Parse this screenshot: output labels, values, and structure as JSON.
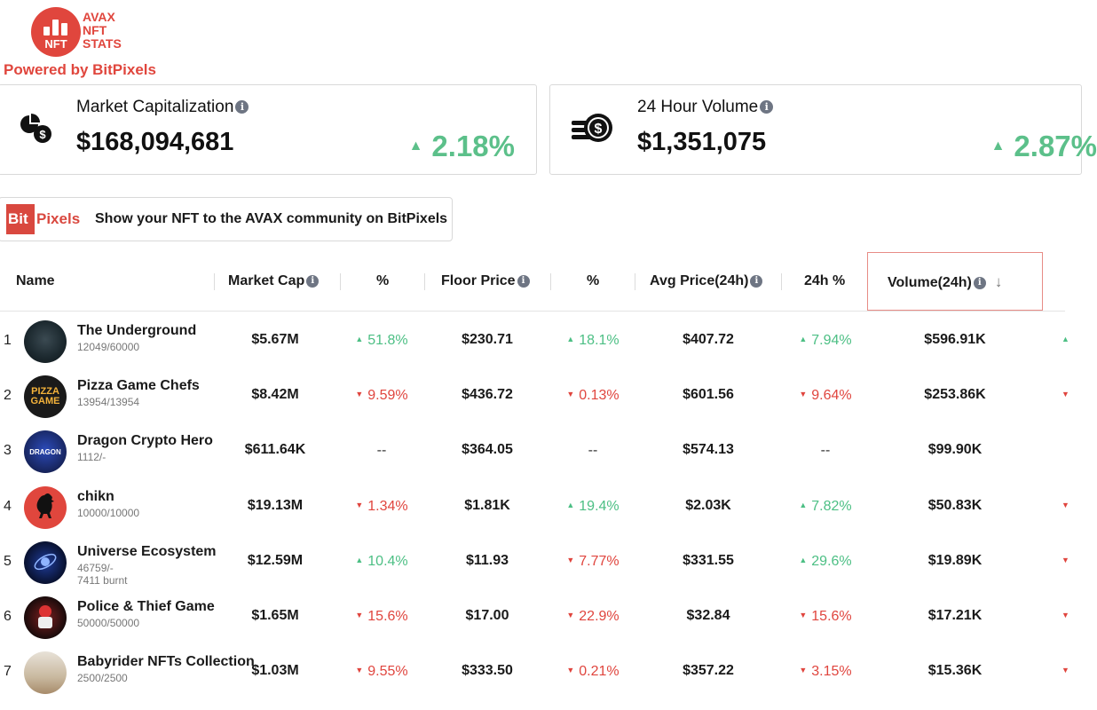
{
  "brand": {
    "logo_text": "NFT",
    "logo_words": [
      "AVAX",
      "NFT",
      "STATS"
    ],
    "powered_by": "Powered by BitPixels",
    "accent_color": "#e0463d"
  },
  "stats": [
    {
      "title": "Market Capitalization",
      "value": "$168,094,681",
      "change": "2.18%",
      "direction": "up",
      "icon": "pie-chart-dollar-icon"
    },
    {
      "title": "24 Hour Volume",
      "value": "$1,351,075",
      "change": "2.87%",
      "direction": "up",
      "icon": "stacked-coins-dollar-icon"
    }
  ],
  "promo": {
    "logo_bit": "Bit",
    "logo_pixels": "Pixels",
    "text": "Show your NFT to the AVAX community on BitPixels"
  },
  "table": {
    "headers": {
      "name": "Name",
      "market_cap": "Market Cap",
      "mc_pct": "%",
      "floor_price": "Floor Price",
      "fp_pct": "%",
      "avg_price": "Avg Price(24h)",
      "ap_pct": "24h %",
      "volume": "Volume(24h)"
    },
    "sorted_by": "Volume(24h)",
    "rows": [
      {
        "rank": "1",
        "name": "The Underground",
        "supply": "12049/60000",
        "burnt": "",
        "market_cap": "$5.67M",
        "mc_pct": "51.8%",
        "mc_dir": "up",
        "floor": "$230.71",
        "fp_pct": "18.1%",
        "fp_dir": "up",
        "avg": "$407.72",
        "ap_pct": "7.94%",
        "ap_dir": "up",
        "volume": "$596.91K",
        "edge_dir": "up"
      },
      {
        "rank": "2",
        "name": "Pizza Game Chefs",
        "supply": "13954/13954",
        "burnt": "",
        "market_cap": "$8.42M",
        "mc_pct": "9.59%",
        "mc_dir": "down",
        "floor": "$436.72",
        "fp_pct": "0.13%",
        "fp_dir": "down",
        "avg": "$601.56",
        "ap_pct": "9.64%",
        "ap_dir": "down",
        "volume": "$253.86K",
        "edge_dir": "down"
      },
      {
        "rank": "3",
        "name": "Dragon Crypto Hero",
        "supply": "1112/-",
        "burnt": "",
        "market_cap": "$611.64K",
        "mc_pct": "--",
        "mc_dir": "none",
        "floor": "$364.05",
        "fp_pct": "--",
        "fp_dir": "none",
        "avg": "$574.13",
        "ap_pct": "--",
        "ap_dir": "none",
        "volume": "$99.90K",
        "edge_dir": "none"
      },
      {
        "rank": "4",
        "name": "chikn",
        "supply": "10000/10000",
        "burnt": "",
        "market_cap": "$19.13M",
        "mc_pct": "1.34%",
        "mc_dir": "down",
        "floor": "$1.81K",
        "fp_pct": "19.4%",
        "fp_dir": "up",
        "avg": "$2.03K",
        "ap_pct": "7.82%",
        "ap_dir": "up",
        "volume": "$50.83K",
        "edge_dir": "down"
      },
      {
        "rank": "5",
        "name": "Universe Ecosystem",
        "supply": "46759/-",
        "burnt": "7411 burnt",
        "market_cap": "$12.59M",
        "mc_pct": "10.4%",
        "mc_dir": "up",
        "floor": "$11.93",
        "fp_pct": "7.77%",
        "fp_dir": "down",
        "avg": "$331.55",
        "ap_pct": "29.6%",
        "ap_dir": "up",
        "volume": "$19.89K",
        "edge_dir": "down"
      },
      {
        "rank": "6",
        "name": "Police & Thief Game",
        "supply": "50000/50000",
        "burnt": "",
        "market_cap": "$1.65M",
        "mc_pct": "15.6%",
        "mc_dir": "down",
        "floor": "$17.00",
        "fp_pct": "22.9%",
        "fp_dir": "down",
        "avg": "$32.84",
        "ap_pct": "15.6%",
        "ap_dir": "down",
        "volume": "$17.21K",
        "edge_dir": "down"
      },
      {
        "rank": "7",
        "name": "Babyrider NFTs Collection",
        "supply": "2500/2500",
        "burnt": "",
        "market_cap": "$1.03M",
        "mc_pct": "9.55%",
        "mc_dir": "down",
        "floor": "$333.50",
        "fp_pct": "0.21%",
        "fp_dir": "down",
        "avg": "$357.22",
        "ap_pct": "3.15%",
        "ap_dir": "down",
        "volume": "$15.36K",
        "edge_dir": "down"
      }
    ]
  },
  "colors": {
    "up": "#4cbf84",
    "down": "#e0453e",
    "stat_up": "#5cc08a"
  }
}
